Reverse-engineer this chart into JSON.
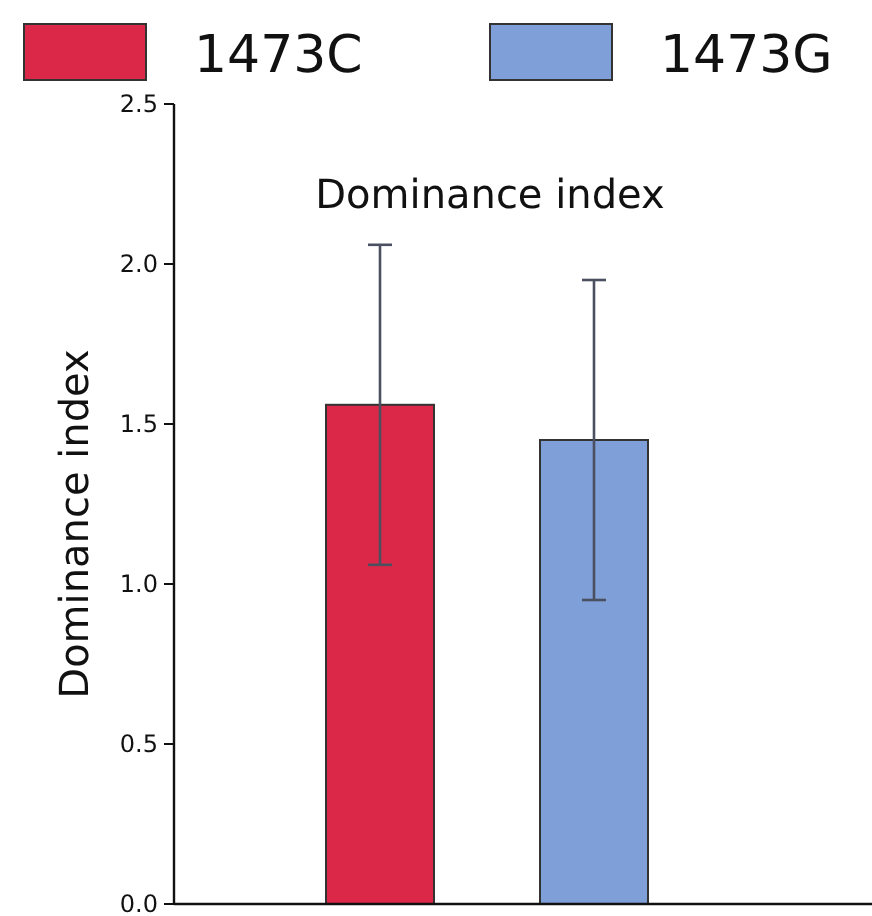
{
  "chart_data": {
    "type": "bar",
    "title": "Dominance index",
    "ylabel": "Dominance index",
    "categories": [
      null
    ],
    "series": [
      {
        "name": "1473C",
        "color": "#dc2848",
        "values": [
          1.56
        ],
        "errors": [
          0.5
        ]
      },
      {
        "name": "1473G",
        "color": "#7f9fd8",
        "values": [
          1.45
        ],
        "errors": [
          0.5
        ]
      }
    ],
    "ylim": [
      0,
      2.5
    ],
    "yticks": [
      {
        "value": 0,
        "label": "0.0"
      },
      {
        "value": 0.5,
        "label": "0.5"
      },
      {
        "value": 1,
        "label": "1.0"
      },
      {
        "value": 1.5,
        "label": "1.5"
      },
      {
        "value": 2,
        "label": "2.0"
      },
      {
        "value": 2.5,
        "label": "2.5"
      }
    ],
    "tick_labels": "y",
    "legend": "top",
    "grid": false
  }
}
